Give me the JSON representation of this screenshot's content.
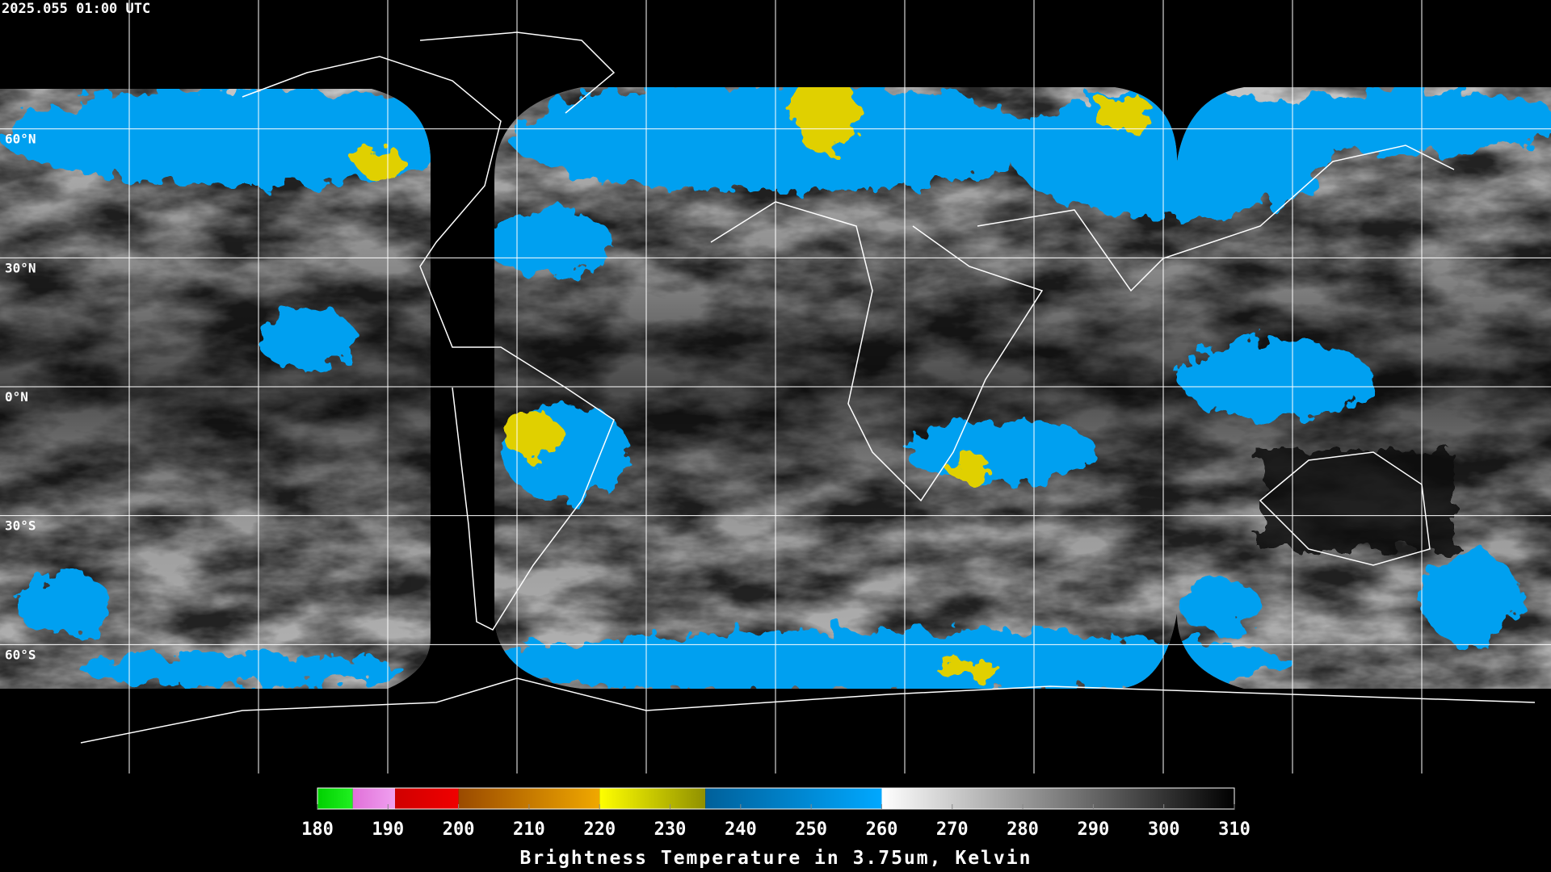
{
  "header": {
    "timestamp": "2025.055 01:00 UTC"
  },
  "map": {
    "lat_labels": [
      "60°N",
      "30°N",
      "0°N",
      "30°S",
      "60°S"
    ]
  },
  "colorbar": {
    "range": [
      180,
      310
    ],
    "ticks": [
      180,
      190,
      200,
      210,
      220,
      230,
      240,
      250,
      260,
      270,
      280,
      290,
      300,
      310
    ],
    "segments": [
      {
        "from": 180,
        "to": 185,
        "colors": [
          "#00d000",
          "#20f020"
        ]
      },
      {
        "from": 185,
        "to": 191,
        "colors": [
          "#e070d8",
          "#f0a0f0"
        ]
      },
      {
        "from": 191,
        "to": 200,
        "colors": [
          "#d00000",
          "#f00000"
        ]
      },
      {
        "from": 200,
        "to": 220,
        "colors": [
          "#9a4a00",
          "#f0a800"
        ]
      },
      {
        "from": 220,
        "to": 235,
        "colors": [
          "#ffff00",
          "#909000"
        ]
      },
      {
        "from": 235,
        "to": 260,
        "colors": [
          "#00609a",
          "#00a8ff"
        ]
      },
      {
        "from": 260,
        "to": 310,
        "colors": [
          "#ffffff",
          "#000000"
        ]
      }
    ],
    "title": "Brightness Temperature in 3.75um, Kelvin"
  }
}
